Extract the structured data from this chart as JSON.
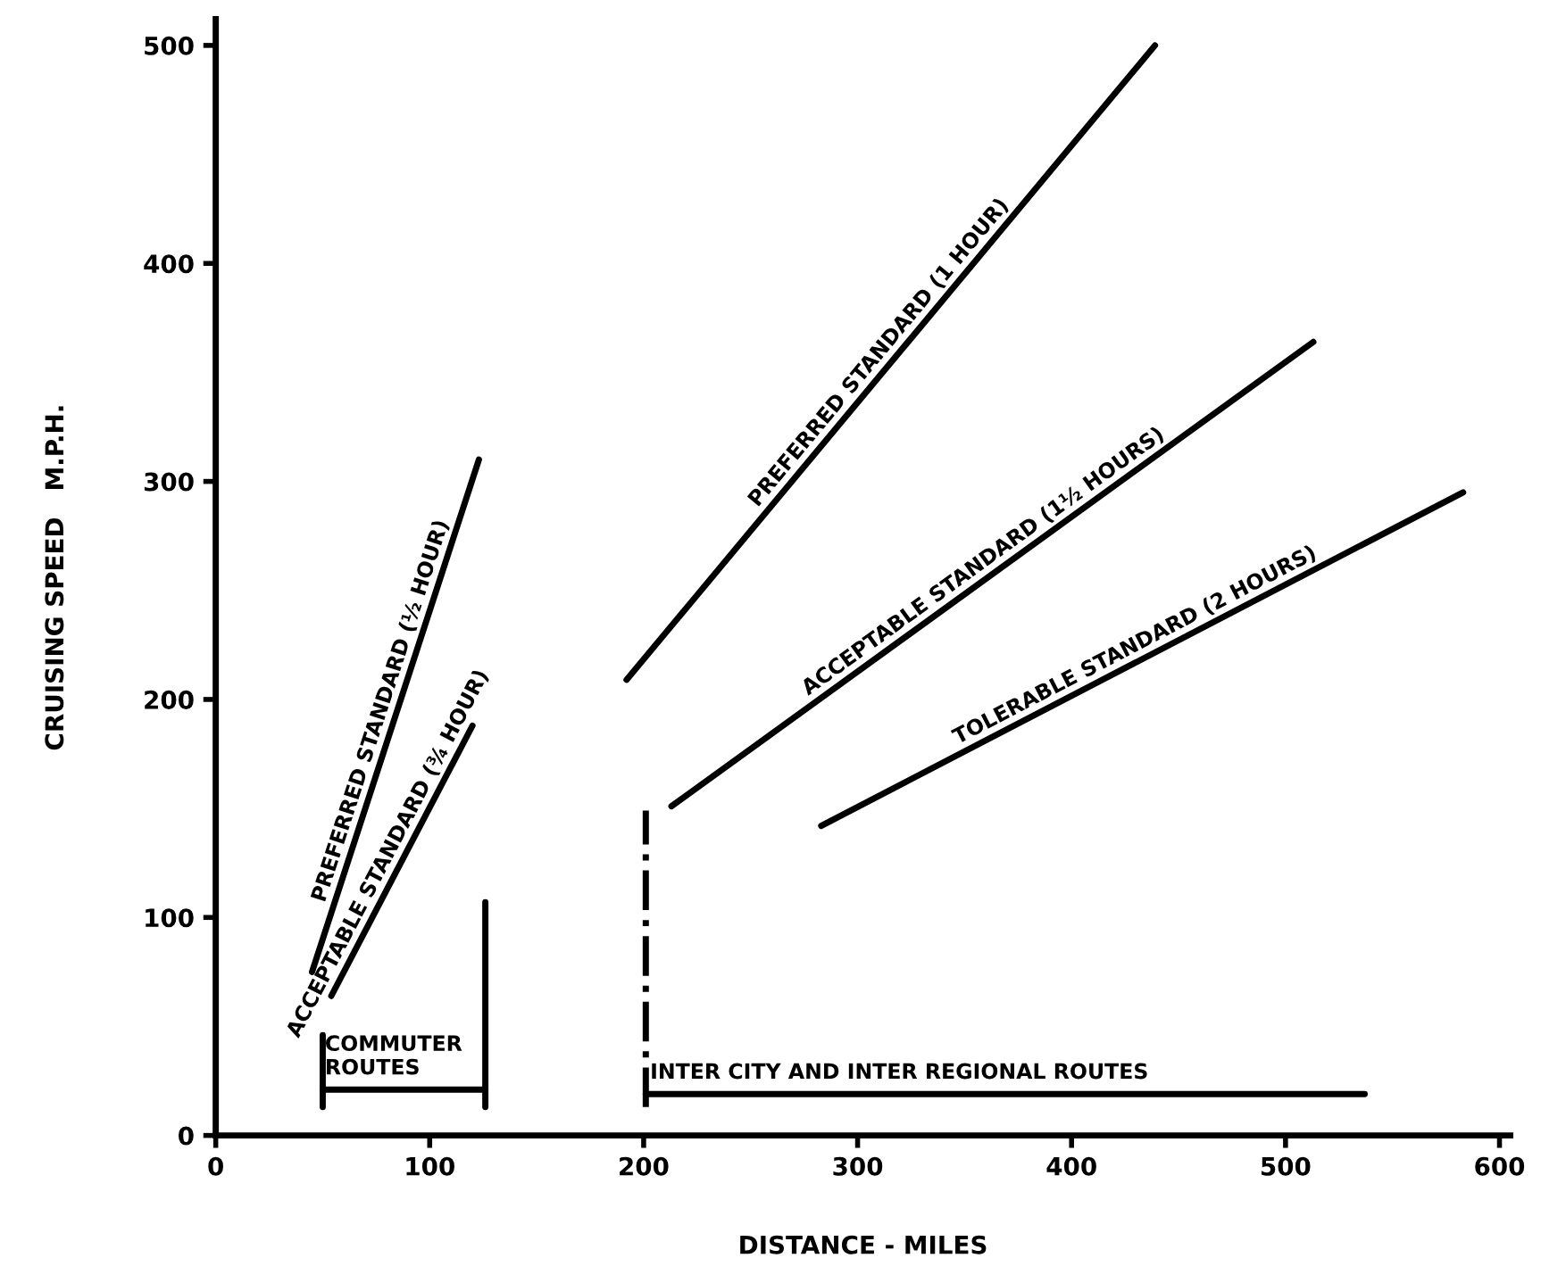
{
  "chart_data": {
    "type": "line",
    "xlabel": "DISTANCE - MILES",
    "ylabel": "CRUISING SPEED   M.P.H.",
    "xlim": [
      0,
      605
    ],
    "ylim": [
      0,
      512
    ],
    "xticks": [
      0,
      100,
      200,
      300,
      400,
      500,
      600
    ],
    "yticks": [
      0,
      100,
      200,
      300,
      400,
      500
    ],
    "grid": false,
    "legend": false,
    "series": [
      {
        "name": "PREFERRED STANDARD (½ HOUR)",
        "color": "#000000",
        "x": [
          45,
          123
        ],
        "values": [
          75,
          310
        ]
      },
      {
        "name": "ACCEPTABLE STANDARD (¾ HOUR)",
        "color": "#000000",
        "x": [
          54,
          120
        ],
        "values": [
          64,
          188
        ]
      },
      {
        "name": "PREFERRED STANDARD (1 HOUR)",
        "color": "#000000",
        "x": [
          192,
          439
        ],
        "values": [
          209,
          500
        ]
      },
      {
        "name": "ACCEPTABLE STANDARD (1½ HOURS)",
        "color": "#000000",
        "x": [
          213,
          513
        ],
        "values": [
          151,
          364
        ]
      },
      {
        "name": "TOLERABLE STANDARD (2 HOURS)",
        "color": "#000000",
        "x": [
          283,
          583
        ],
        "values": [
          142,
          295
        ]
      },
      {
        "color": "#000000",
        "x": [
          126,
          126
        ],
        "values": [
          13,
          107
        ]
      },
      {
        "color": "#000000",
        "x": [
          50,
          50
        ],
        "values": [
          13,
          46
        ]
      },
      {
        "color": "#000000",
        "x": [
          201,
          201
        ],
        "values": [
          13,
          149
        ],
        "line_style": "dashdot"
      },
      {
        "color": "#000000",
        "x": [
          50,
          126
        ],
        "values": [
          21,
          21
        ]
      },
      {
        "color": "#000000",
        "x": [
          201,
          537
        ],
        "values": [
          19,
          19
        ]
      }
    ],
    "annotations": [
      {
        "text": "COMMUTER\nROUTES",
        "x": 51,
        "y": 26
      },
      {
        "text": "INTER CITY AND INTER REGIONAL ROUTES",
        "x": 203,
        "y": 24
      }
    ]
  }
}
